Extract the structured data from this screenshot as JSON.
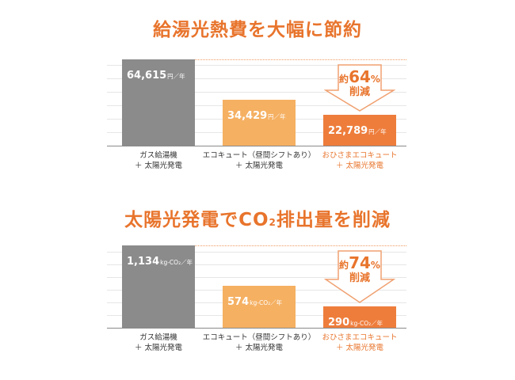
{
  "colors": {
    "accent": "#e8742c",
    "gas_bar": "#8b8b8b",
    "ecocute_bar": "#f5b062",
    "ohisama_bar": "#ee7d3c"
  },
  "chart_data": [
    {
      "type": "bar",
      "title": "給湯光熱費を大幅に節約",
      "categories": [
        "ガス給湯機\n＋ 太陽光発電",
        "エコキュート（昼間シフトあり）\n＋ 太陽光発電",
        "おひさまエコキュート\n＋ 太陽光発電"
      ],
      "values": [
        64615,
        34429,
        22789
      ],
      "value_labels": [
        "64,615",
        "34,429",
        "22,789"
      ],
      "unit": "円／年",
      "ylim": [
        0,
        72000
      ],
      "highlight_index": 2,
      "callout": {
        "prefix": "約",
        "percent": "64",
        "unit": "%",
        "text": "削減"
      }
    },
    {
      "type": "bar",
      "title": "太陽光発電でCO2排出量を削減",
      "categories": [
        "ガス給湯機\n＋ 太陽光発電",
        "エコキュート（昼間シフトあり）\n＋ 太陽光発電",
        "おひさまエコキュート\n＋ 太陽光発電"
      ],
      "values": [
        1134,
        574,
        290
      ],
      "value_labels": [
        "1,134",
        "574",
        "290"
      ],
      "unit": "kg-CO₂／年",
      "ylim": [
        0,
        1260
      ],
      "highlight_index": 2,
      "callout": {
        "prefix": "約",
        "percent": "74",
        "unit": "%",
        "text": "削減"
      }
    }
  ]
}
